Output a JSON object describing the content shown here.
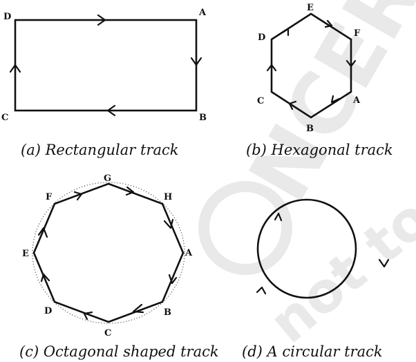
{
  "watermark": {
    "symbol": "©",
    "text_top": "NCERT",
    "text_bottom": "not to be republished",
    "color": "#e9e9e9"
  },
  "panels": {
    "rect": {
      "caption": "(a) Rectangular track",
      "vertices": [
        "A",
        "B",
        "C",
        "D"
      ]
    },
    "hex": {
      "caption": "(b) Hexagonal track",
      "vertices": [
        "A",
        "B",
        "C",
        "D",
        "E",
        "F"
      ]
    },
    "oct": {
      "caption": "(c) Octagonal shaped track",
      "vertices": [
        "A",
        "B",
        "C",
        "D",
        "E",
        "F",
        "G",
        "H"
      ]
    },
    "circle": {
      "caption": "(d) A circular track"
    }
  },
  "colors": {
    "line": "#111111",
    "background": "#ffffff"
  }
}
